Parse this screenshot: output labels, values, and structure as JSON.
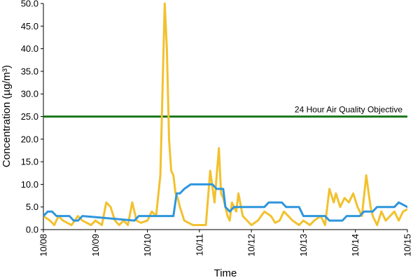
{
  "chart_data": {
    "type": "line",
    "xlabel": "Time",
    "ylabel": "Concentration (µg/m³)",
    "ylim": [
      0,
      50
    ],
    "yticks": [
      0,
      5,
      10,
      15,
      20,
      25,
      30,
      35,
      40,
      45,
      50
    ],
    "ytick_labels": [
      "0.0",
      "5.0",
      "10.0",
      "15.0",
      "20.0",
      "25.0",
      "30.0",
      "35.0",
      "40.0",
      "45.0",
      "50.0"
    ],
    "xlim": [
      "2013-10-08",
      "2013-10-15"
    ],
    "xtick_labels": [
      "10/08",
      "10/09",
      "10/10",
      "10/11",
      "10/12",
      "10/13",
      "10/14",
      "10/15"
    ],
    "grid": false,
    "objective": {
      "label": "24 Hour Air Quality Objective",
      "value": 25,
      "color": "#1e7a1e"
    },
    "series": [
      {
        "color": "#f2c12e",
        "x": [
          "2013-10-08 00:00",
          "2013-10-08 03:00",
          "2013-10-08 05:00",
          "2013-10-08 07:00",
          "2013-10-08 09:00",
          "2013-10-08 11:00",
          "2013-10-08 13:00",
          "2013-10-08 16:00",
          "2013-10-08 18:00",
          "2013-10-08 20:00",
          "2013-10-08 22:00",
          "2013-10-09 00:00",
          "2013-10-09 03:00",
          "2013-10-09 05:00",
          "2013-10-09 07:00",
          "2013-10-09 09:00",
          "2013-10-09 11:00",
          "2013-10-09 13:00",
          "2013-10-09 15:00",
          "2013-10-09 17:00",
          "2013-10-09 19:00",
          "2013-10-09 21:00",
          "2013-10-10 00:00",
          "2013-10-10 02:00",
          "2013-10-10 04:00",
          "2013-10-10 06:00",
          "2013-10-10 08:00",
          "2013-10-10 09:00",
          "2013-10-10 10:00",
          "2013-10-10 11:00",
          "2013-10-10 12:00",
          "2013-10-10 13:00",
          "2013-10-10 14:00",
          "2013-10-10 15:00",
          "2013-10-10 17:00",
          "2013-10-10 19:00",
          "2013-10-10 21:00",
          "2013-10-11 00:00",
          "2013-10-11 03:00",
          "2013-10-11 05:00",
          "2013-10-11 07:00",
          "2013-10-11 09:00",
          "2013-10-11 10:00",
          "2013-10-11 11:00",
          "2013-10-11 12:00",
          "2013-10-11 13:00",
          "2013-10-11 14:00",
          "2013-10-11 15:00",
          "2013-10-11 17:00",
          "2013-10-11 18:00",
          "2013-10-11 20:00",
          "2013-10-11 22:00",
          "2013-10-12 00:00",
          "2013-10-12 03:00",
          "2013-10-12 06:00",
          "2013-10-12 09:00",
          "2013-10-12 11:00",
          "2013-10-12 13:00",
          "2013-10-12 15:00",
          "2013-10-12 17:00",
          "2013-10-12 19:00",
          "2013-10-12 22:00",
          "2013-10-13 00:00",
          "2013-10-13 03:00",
          "2013-10-13 05:00",
          "2013-10-13 08:00",
          "2013-10-13 10:00",
          "2013-10-13 12:00",
          "2013-10-13 14:00",
          "2013-10-13 15:00",
          "2013-10-13 17:00",
          "2013-10-13 19:00",
          "2013-10-13 21:00",
          "2013-10-13 23:00",
          "2013-10-14 01:00",
          "2013-10-14 03:00",
          "2013-10-14 05:00",
          "2013-10-14 07:00",
          "2013-10-14 08:00",
          "2013-10-14 10:00",
          "2013-10-14 12:00",
          "2013-10-14 14:00",
          "2013-10-14 16:00",
          "2013-10-14 18:00",
          "2013-10-14 20:00",
          "2013-10-14 22:00",
          "2013-10-15 00:00"
        ],
        "y": [
          3,
          2,
          1,
          3,
          2,
          1.5,
          1,
          3,
          2,
          1.5,
          1,
          2,
          1,
          6,
          5,
          2,
          1,
          2,
          1,
          6,
          2,
          1.5,
          2,
          4,
          3,
          12,
          50,
          40,
          20,
          13,
          12,
          8,
          7,
          5,
          2,
          1.5,
          1,
          1,
          1,
          13,
          6,
          18,
          8,
          7,
          5,
          3,
          2,
          6,
          4,
          8,
          3,
          2,
          1,
          2,
          4,
          3,
          1.5,
          2,
          4,
          3,
          2,
          1,
          2,
          1,
          2,
          3,
          1,
          9,
          6,
          8,
          5,
          7,
          6,
          8,
          5,
          3,
          12,
          5,
          3,
          1,
          4,
          2,
          3,
          4,
          2,
          4,
          4.5
        ]
      },
      {
        "color": "#2e96dc",
        "x": [
          "2013-10-08 00:00",
          "2013-10-08 02:00",
          "2013-10-08 04:00",
          "2013-10-08 06:00",
          "2013-10-08 12:00",
          "2013-10-08 14:00",
          "2013-10-08 16:00",
          "2013-10-08 18:00",
          "2013-10-09 18:00",
          "2013-10-09 20:00",
          "2013-10-10 12:00",
          "2013-10-10 13:30",
          "2013-10-10 15:00",
          "2013-10-10 17:00",
          "2013-10-10 20:00",
          "2013-10-11 00:00",
          "2013-10-11 06:00",
          "2013-10-11 08:00",
          "2013-10-11 11:00",
          "2013-10-11 12:00",
          "2013-10-11 14:00",
          "2013-10-11 16:00",
          "2013-10-11 22:00",
          "2013-10-12 00:00",
          "2013-10-12 06:00",
          "2013-10-12 08:00",
          "2013-10-12 14:00",
          "2013-10-12 16:00",
          "2013-10-12 22:00",
          "2013-10-13 00:00",
          "2013-10-13 10:00",
          "2013-10-13 12:00",
          "2013-10-13 18:00",
          "2013-10-13 20:00",
          "2013-10-14 02:00",
          "2013-10-14 04:00",
          "2013-10-14 08:00",
          "2013-10-14 10:00",
          "2013-10-14 18:00",
          "2013-10-14 20:00",
          "2013-10-15 00:00"
        ],
        "y": [
          3,
          4,
          4,
          3,
          3,
          2,
          2,
          3,
          2,
          3,
          3,
          8,
          8,
          9,
          10,
          10,
          10,
          9,
          9,
          5,
          4,
          5,
          5,
          5,
          5,
          6,
          6,
          5,
          5,
          3,
          3,
          2,
          2,
          3,
          3,
          4,
          4,
          5,
          5,
          6,
          5
        ]
      }
    ]
  }
}
